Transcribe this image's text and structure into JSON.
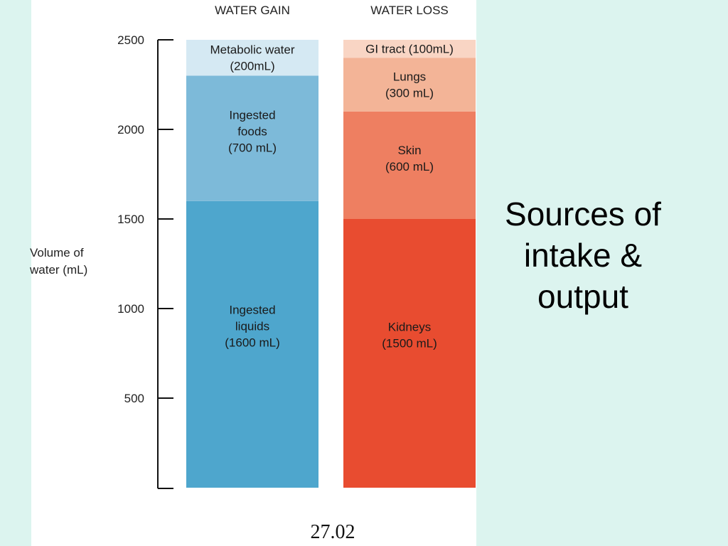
{
  "slide": {
    "side_title_lines": [
      "Sources of",
      "intake &",
      "output"
    ],
    "figure_number": "27.02",
    "background_color": "#dcf4ef"
  },
  "chart_data": {
    "type": "bar",
    "stacked": true,
    "categories": [
      "WATER GAIN",
      "WATER LOSS"
    ],
    "ylabel_lines": [
      "Volume of",
      "water (mL)"
    ],
    "ylim": [
      0,
      2500
    ],
    "yticks": [
      500,
      1000,
      1500,
      2000,
      2500
    ],
    "grid": false,
    "legend": "none",
    "stacks": [
      {
        "category": "WATER GAIN",
        "segments": [
          {
            "value": 1600,
            "label_lines": [
              "Ingested",
              "liquids",
              "(1600 mL)"
            ],
            "color": "#4ea6cd"
          },
          {
            "value": 700,
            "label_lines": [
              "Ingested",
              "foods",
              "(700 mL)"
            ],
            "color": "#7dbad9"
          },
          {
            "value": 200,
            "label_lines": [
              "Metabolic water",
              "(200mL)"
            ],
            "color": "#d5e9f3"
          }
        ]
      },
      {
        "category": "WATER LOSS",
        "segments": [
          {
            "value": 1500,
            "label_lines": [
              "Kidneys",
              "(1500 mL)"
            ],
            "color": "#e84c30"
          },
          {
            "value": 600,
            "label_lines": [
              "Skin",
              "(600 mL)"
            ],
            "color": "#ee7f61"
          },
          {
            "value": 300,
            "label_lines": [
              "Lungs",
              "(300 mL)"
            ],
            "color": "#f3b497"
          },
          {
            "value": 100,
            "label_lines": [
              "GI tract (100mL)"
            ],
            "color": "#f9d5c4"
          }
        ]
      }
    ]
  }
}
